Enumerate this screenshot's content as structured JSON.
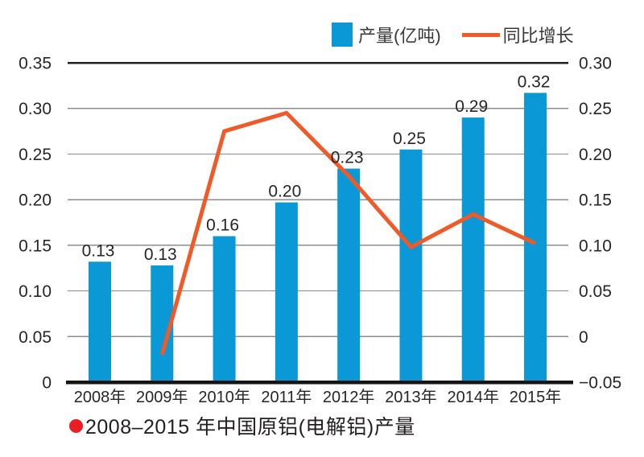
{
  "legend": {
    "bar_label": "产量(亿吨)",
    "line_label": "同比增长"
  },
  "caption": {
    "bullet_icon": "red-dot",
    "text": "2008–2015 年中国原铝(电解铝)产量"
  },
  "colors": {
    "bar": "#0a99d6",
    "line": "#f05a28",
    "bullet": "#ec1c24",
    "grid": "#8c8c8c",
    "top_border": "#231f20",
    "axis": "#141414",
    "text": "#262626"
  },
  "chart_data": {
    "type": "bar+line",
    "title": "2008–2015 年中国原铝(电解铝)产量",
    "categories": [
      "2008年",
      "2009年",
      "2010年",
      "2011年",
      "2012年",
      "2013年",
      "2014年",
      "2015年"
    ],
    "series": [
      {
        "name": "产量(亿吨)",
        "type": "bar",
        "axis": "left",
        "labels": [
          "0.13",
          "0.13",
          "0.16",
          "0.20",
          "0.23",
          "0.25",
          "0.29",
          "0.32"
        ],
        "values": [
          0.132,
          0.128,
          0.16,
          0.197,
          0.234,
          0.255,
          0.29,
          0.317
        ]
      },
      {
        "name": "同比增长",
        "type": "line",
        "axis": "right",
        "values": [
          null,
          -0.02,
          0.225,
          0.245,
          0.176,
          0.098,
          0.134,
          0.102
        ]
      }
    ],
    "left_axis": {
      "min": 0,
      "max": 0.35,
      "ticks": [
        "0.35",
        "0.30",
        "0.25",
        "0.20",
        "0.15",
        "0.10",
        "0.05",
        "0"
      ]
    },
    "right_axis": {
      "min": -0.05,
      "max": 0.3,
      "ticks": [
        "0.30",
        "0.25",
        "0.20",
        "0.15",
        "0.10",
        "0.05",
        "0",
        "−0.05"
      ]
    },
    "grid": "horizontal",
    "legend_position": "top-right"
  }
}
